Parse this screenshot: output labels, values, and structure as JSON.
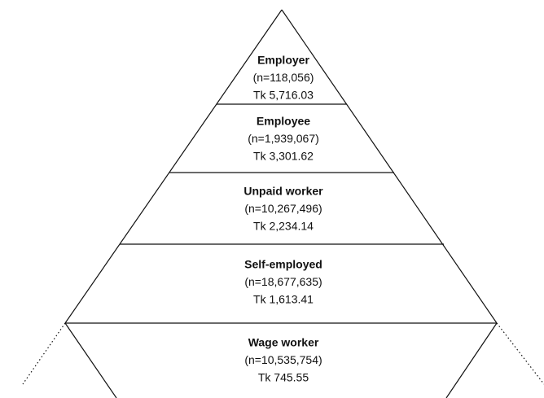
{
  "levels": [
    {
      "label": "Employer",
      "n": "(n=118,056)",
      "tk": "Tk 5,716.03"
    },
    {
      "label": "Employee",
      "n": "(n=1,939,067)",
      "tk": "Tk 3,301.62"
    },
    {
      "label": "Unpaid worker",
      "n": "(n=10,267,496)",
      "tk": "Tk 2,234.14"
    },
    {
      "label": "Self-employed",
      "n": "(n=18,677,635)",
      "tk": "Tk 1,613.41"
    },
    {
      "label": "Wage worker",
      "n": "(n=10,535,754)",
      "tk": "Tk 745.55"
    }
  ]
}
